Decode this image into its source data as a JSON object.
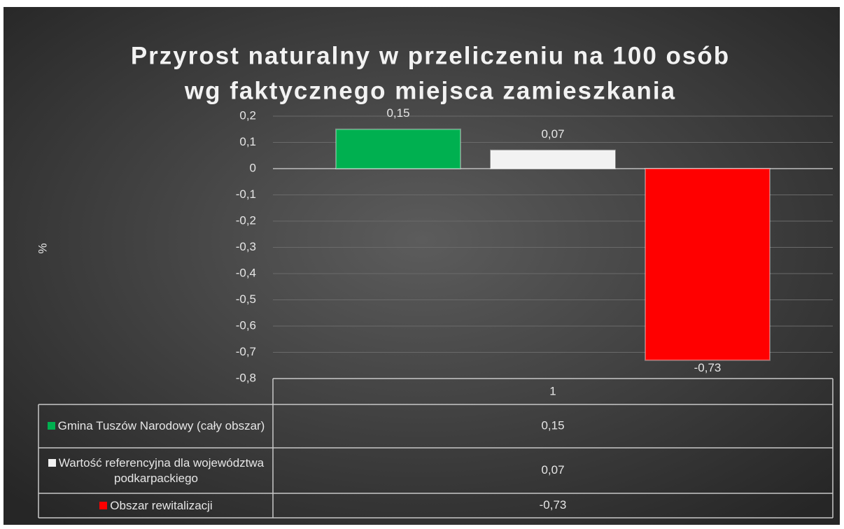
{
  "chart_data": {
    "type": "bar",
    "title": "Przyrost naturalny w przeliczeniu na 100 osób",
    "subtitle": "wg faktycznego miejsca zamieszkania",
    "y_axis_label": "%",
    "categories": [
      "1"
    ],
    "series": [
      {
        "name": "Gmina Tuszów Narodowy (cały obszar)",
        "color": "#00b050",
        "values": [
          0.15
        ],
        "value_labels": [
          "0,15"
        ]
      },
      {
        "name": "Wartość referencyjna dla województwa podkarpackiego",
        "color": "#f2f2f2",
        "values": [
          0.07
        ],
        "value_labels": [
          "0,07"
        ]
      },
      {
        "name": "Obszar rewitalizacji",
        "color": "#ff0000",
        "values": [
          -0.73
        ],
        "value_labels": [
          "-0,73"
        ]
      }
    ],
    "ylim": [
      -0.8,
      0.2
    ],
    "yticks": [
      {
        "value": 0.2,
        "label": "0,2"
      },
      {
        "value": 0.1,
        "label": "0,1"
      },
      0,
      {
        "value": -0.1,
        "label": "-0,1"
      },
      {
        "value": -0.2,
        "label": "-0,2"
      },
      {
        "value": -0.3,
        "label": "-0,3"
      },
      {
        "value": -0.4,
        "label": "-0,4"
      },
      {
        "value": -0.5,
        "label": "-0,5"
      },
      {
        "value": -0.6,
        "label": "-0,6"
      },
      {
        "value": -0.7,
        "label": "-0,7"
      },
      {
        "value": -0.8,
        "label": "-0,8"
      }
    ],
    "grid": true,
    "data_table": true
  }
}
